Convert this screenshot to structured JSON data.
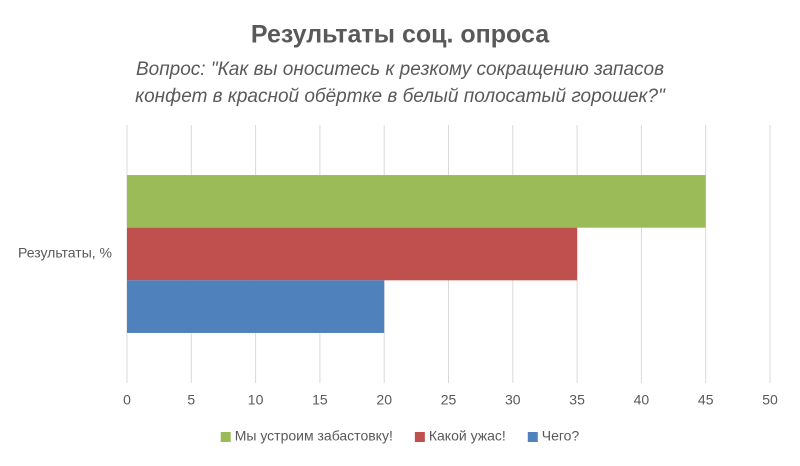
{
  "chart_data": {
    "type": "bar",
    "orientation": "horizontal",
    "title": "Результаты соц. опроса",
    "subtitle": [
      "Вопрос: \"Как вы оноситесь к резкому сокращению запасов",
      "конфет в красной обёртке в белый полосатый горошек?\""
    ],
    "categories": [
      "Результаты, %"
    ],
    "series": [
      {
        "name": "Мы устроим забастовку!",
        "color": "#9bbb59",
        "values": [
          45
        ]
      },
      {
        "name": "Какой ужас!",
        "color": "#c0504d",
        "values": [
          35
        ]
      },
      {
        "name": "Чего?",
        "color": "#4f81bd",
        "values": [
          20
        ]
      }
    ],
    "xlim": [
      0,
      50
    ],
    "xticks": [
      0,
      5,
      10,
      15,
      20,
      25,
      30,
      35,
      40,
      45,
      50
    ],
    "grid": true,
    "legend": "bottom"
  }
}
